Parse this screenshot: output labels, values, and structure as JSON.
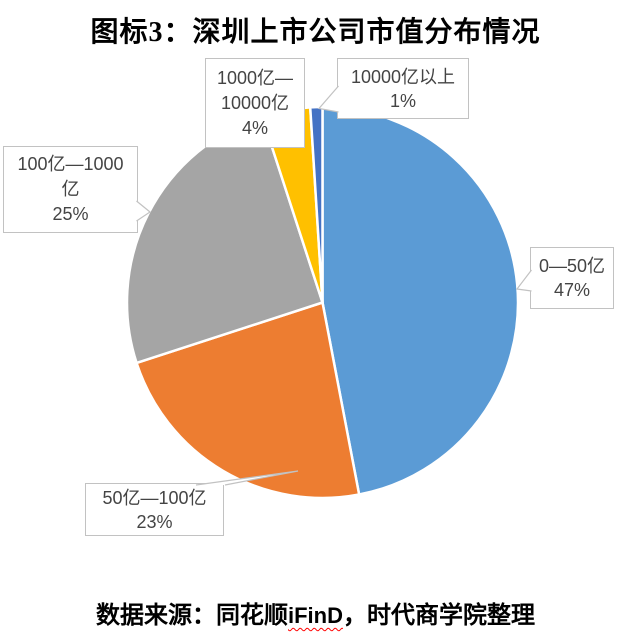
{
  "title": "图标3：深圳上市公司市值分布情况",
  "source_line": {
    "prefix": "数据来源：同花顺",
    "latin": "iFinD",
    "suffix": "，时代商学院整理",
    "spellcheck_underline_color": "#FF0000"
  },
  "chart_data": {
    "type": "pie",
    "title": "图标3：深圳上市公司市值分布情况",
    "start_angle_deg": 0,
    "direction": "clockwise",
    "legend_position": "none",
    "labels": [
      "0—50亿",
      "50亿—100亿",
      "100亿—1000亿",
      "1000亿—10000亿",
      "10000亿以上"
    ],
    "values": [
      47,
      23,
      25,
      4,
      1
    ],
    "value_unit": "%",
    "colors": [
      "#5B9BD5",
      "#ED7D31",
      "#A5A5A5",
      "#FFC000",
      "#4472C4"
    ],
    "slice_border_color": "#FFFFFF",
    "callout_border_color": "#C2C2C2",
    "callout_text_color": "#444444",
    "callouts": [
      {
        "slice": "0—50亿",
        "text": "0—50亿\n47%"
      },
      {
        "slice": "50亿—100亿",
        "text": "50亿—100亿\n23%"
      },
      {
        "slice": "100亿—1000亿",
        "text": "100亿—1000\n亿\n25%"
      },
      {
        "slice": "1000亿—10000亿",
        "text": "1000亿—\n10000亿\n4%"
      },
      {
        "slice": "10000亿以上",
        "text": "10000亿以上\n1%"
      }
    ]
  }
}
